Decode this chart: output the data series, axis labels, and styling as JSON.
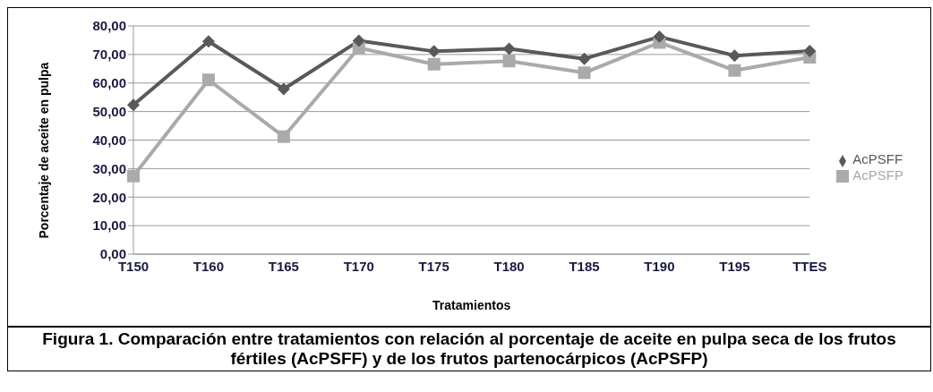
{
  "chart_data": {
    "type": "line",
    "xlabel": "Tratamientos",
    "ylabel": "Porcentaje de aceite en pulpa",
    "categories": [
      "T150",
      "T160",
      "T165",
      "T170",
      "T175",
      "T180",
      "T185",
      "T190",
      "T195",
      "TTES"
    ],
    "series": [
      {
        "name": "AcPSFF",
        "color": "#595959",
        "marker": "diamond",
        "values": [
          52.3,
          74.6,
          57.9,
          74.8,
          71.1,
          72.0,
          68.5,
          76.2,
          69.6,
          71.2
        ]
      },
      {
        "name": "AcPSFP",
        "color": "#aaaaaa",
        "marker": "square",
        "values": [
          27.4,
          61.1,
          41.2,
          72.3,
          66.6,
          67.7,
          63.6,
          74.2,
          64.4,
          69.0
        ]
      }
    ],
    "ylim": [
      0,
      80
    ],
    "yticks": [
      {
        "value": 0,
        "label": "0,00"
      },
      {
        "value": 10,
        "label": "10,00"
      },
      {
        "value": 20,
        "label": "20,00"
      },
      {
        "value": 30,
        "label": "30,00"
      },
      {
        "value": 40,
        "label": "40,00"
      },
      {
        "value": 50,
        "label": "50,00"
      },
      {
        "value": 60,
        "label": "60,00"
      },
      {
        "value": 70,
        "label": "70,00"
      },
      {
        "value": 80,
        "label": "80,00"
      }
    ],
    "grid": "y",
    "legend": "right",
    "annotations": [
      "Figura 1. Comparación entre tratamientos con relación al porcentaje de aceite en pulpa seca de los frutos fértiles (AcPSFF) y de los frutos partenocárpicos (AcPSFP)"
    ]
  }
}
